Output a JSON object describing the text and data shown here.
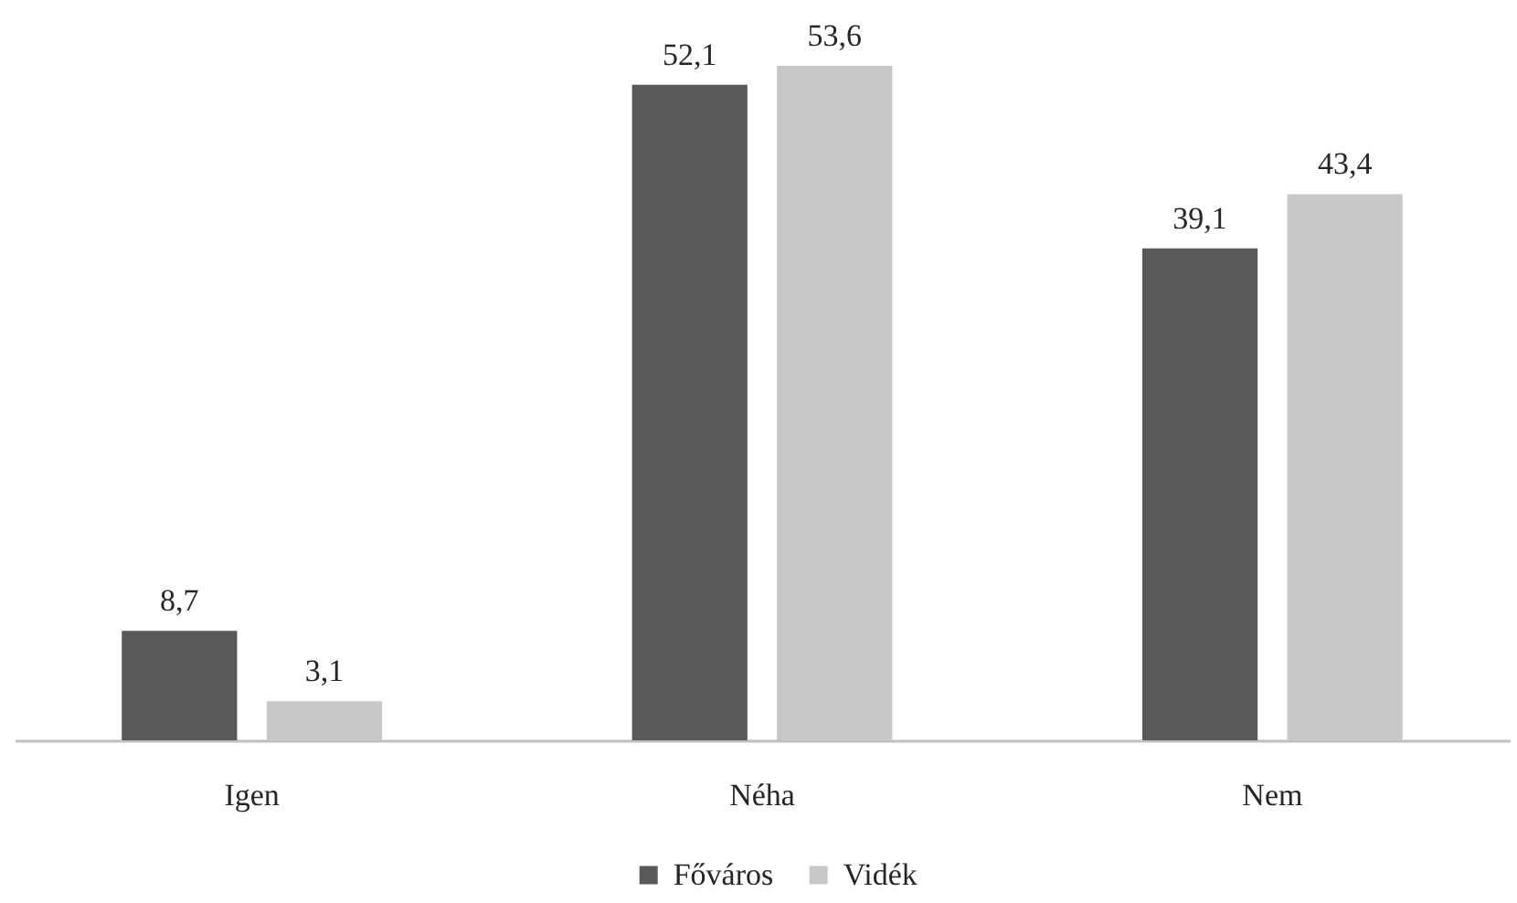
{
  "chart_data": {
    "type": "bar",
    "categories": [
      "Igen",
      "Néha",
      "Nem"
    ],
    "series": [
      {
        "name": "Főváros",
        "color": "#595959",
        "values": [
          8.7,
          52.1,
          39.1
        ],
        "value_labels": [
          "8,7",
          "52,1",
          "39,1"
        ]
      },
      {
        "name": "Vidék",
        "color": "#c8c8c8",
        "values": [
          3.1,
          53.6,
          43.4
        ],
        "value_labels": [
          "3,1",
          "53,6",
          "43,4"
        ]
      }
    ],
    "legend": "bottom",
    "grid": false
  }
}
